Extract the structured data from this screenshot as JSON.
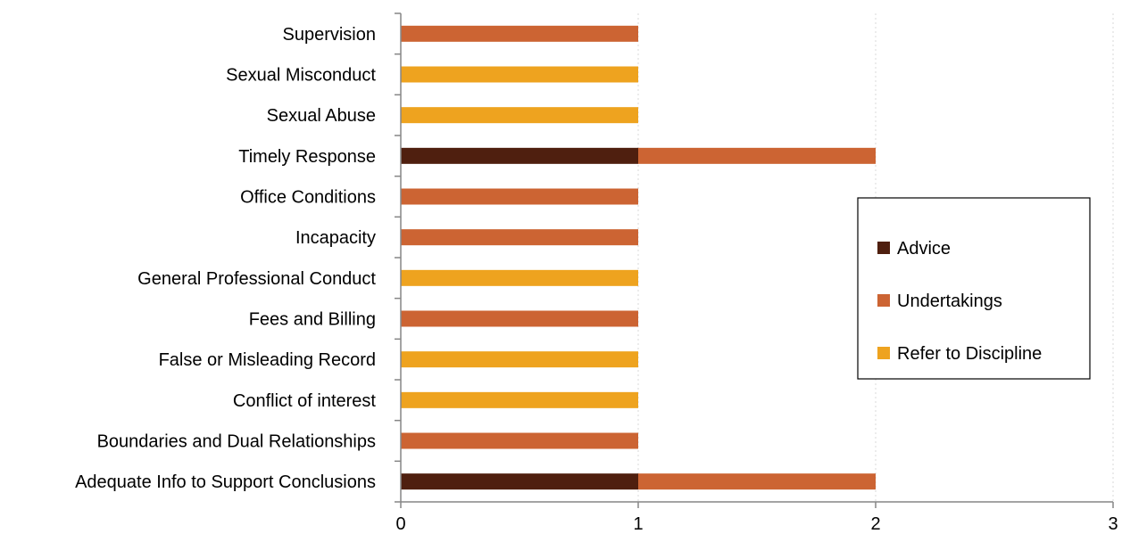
{
  "chart_data": {
    "type": "bar",
    "orientation": "horizontal",
    "stacked": true,
    "categories": [
      "Adequate Info to Support Conclusions",
      "Boundaries and Dual Relationships",
      "Conflict of interest",
      "False or Misleading Record",
      "Fees and Billing",
      "General Professional Conduct",
      "Incapacity",
      "Office Conditions",
      "Timely Response",
      "Sexual Abuse",
      "Sexual Misconduct",
      "Supervision"
    ],
    "series": [
      {
        "name": "Advice",
        "color": "#4f1f0f",
        "values": [
          1,
          0,
          0,
          0,
          0,
          0,
          0,
          0,
          1,
          0,
          0,
          0
        ]
      },
      {
        "name": "Undertakings",
        "color": "#cc6433",
        "values": [
          1,
          1,
          0,
          0,
          1,
          0,
          1,
          1,
          1,
          0,
          0,
          1
        ]
      },
      {
        "name": "Refer to Discipline",
        "color": "#eea31f",
        "values": [
          0,
          0,
          1,
          1,
          0,
          1,
          0,
          0,
          0,
          1,
          1,
          0
        ]
      }
    ],
    "xlim": [
      0,
      3
    ],
    "x_ticks": [
      "0",
      "1",
      "2",
      "3"
    ],
    "grid": "vertical dotted",
    "legend": "right"
  }
}
